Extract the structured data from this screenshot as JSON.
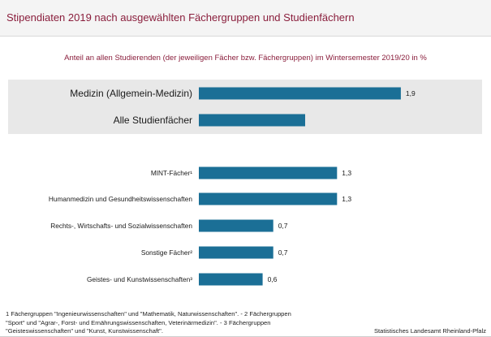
{
  "header": {
    "title": "Stipendiaten 2019 nach ausgewählten Fächergruppen und Studienfächern"
  },
  "footer": {
    "footnote_lines": [
      "1 Fächergruppen  \"Ingenieurwissenschaften\"  und  \"Mathematik, Naturwissenschaften\".  - 2 Fächergruppen",
      "\"Sport\" und \"Agrar-, Forst- und Ernährungswissenschaften,  Veterinärmedizin\".  - 3 Fächergruppen",
      "\"Geisteswissenschaften\" und \"Kunst, Kunstwissenschaft\"."
    ],
    "source": "Statistisches Landesamt  Rheinland-Pfalz"
  },
  "chart_data": {
    "type": "bar",
    "orientation": "horizontal",
    "subtitle": "Anteil an allen Studierenden  (der jeweiligen Fächer bzw.  Fächergruppen)  im Wintersemester  2019/20 in %",
    "categories": [
      "Medizin (Allgemein-Medizin)",
      "Alle Studienfächer",
      "MINT-Fächer¹",
      "Humanmedizin und Gesundheitswissenschaften",
      "Rechts-, Wirtschafts- und Sozialwissenschaften",
      "Sonstige Fächer²",
      "Geistes- und Kunstwissenschaften³"
    ],
    "values": [
      1.9,
      1.0,
      1.3,
      1.3,
      0.7,
      0.7,
      0.6
    ],
    "data_labels": [
      "1,9",
      "",
      "1,3",
      "1,3",
      "0,7",
      "0,7",
      "0,6"
    ],
    "highlighted_categories": [
      "Medizin (Allgemein-Medizin)",
      "Alle Studienfächer"
    ],
    "xlim": [
      0,
      2.0
    ],
    "grid": false,
    "legend": "none",
    "colors": {
      "bar": "#1b6f96",
      "highlight_band": "#e8e8e8",
      "title": "#8a1e3c"
    }
  }
}
